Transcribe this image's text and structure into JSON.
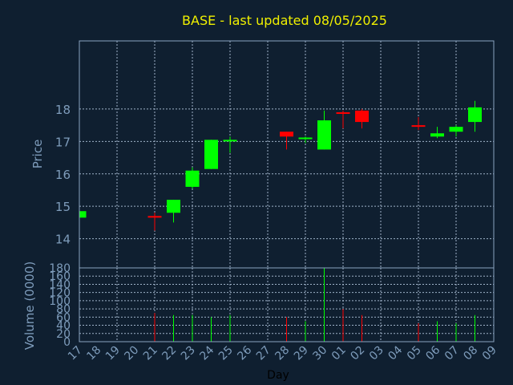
{
  "chart_data": {
    "type": "candlestick",
    "title": "BASE - last updated 08/05/2025",
    "xlabel": "Day",
    "price_ylabel": "Price",
    "volume_ylabel": "Volume (0000)",
    "x_tick_labels": [
      "17",
      "18",
      "19",
      "20",
      "21",
      "22",
      "23",
      "24",
      "25",
      "26",
      "27",
      "28",
      "29",
      "30",
      "01",
      "02",
      "03",
      "04",
      "05",
      "06",
      "07",
      "08",
      "09"
    ],
    "price_yticks": [
      14,
      15,
      16,
      17,
      18
    ],
    "price_ylim": [
      13.1,
      20.1
    ],
    "volume_yticks": [
      0,
      20,
      40,
      60,
      80,
      100,
      120,
      140,
      160,
      180
    ],
    "volume_ylim": [
      0,
      180
    ],
    "grid": true,
    "colors": {
      "up": "#00ff00",
      "down": "#ff0000",
      "title": "#f0f000",
      "axis_text": "#7e9cbb",
      "background": "#0f1f30"
    },
    "candles": [
      {
        "day": "17",
        "open": 14.65,
        "close": 14.85,
        "high": 14.85,
        "low": 14.65,
        "volume": 0
      },
      {
        "day": "21",
        "open": 14.7,
        "close": 14.65,
        "high": 14.8,
        "low": 14.25,
        "volume": 70
      },
      {
        "day": "22",
        "open": 14.8,
        "close": 15.2,
        "high": 15.2,
        "low": 14.5,
        "volume": 65
      },
      {
        "day": "23",
        "open": 15.6,
        "close": 16.1,
        "high": 16.2,
        "low": 15.55,
        "volume": 65
      },
      {
        "day": "24",
        "open": 16.15,
        "close": 17.05,
        "high": 17.05,
        "low": 16.15,
        "volume": 60
      },
      {
        "day": "25",
        "open": 17.0,
        "close": 17.05,
        "high": 17.15,
        "low": 16.65,
        "volume": 65
      },
      {
        "day": "28",
        "open": 17.3,
        "close": 17.15,
        "high": 17.3,
        "low": 16.75,
        "volume": 60
      },
      {
        "day": "29",
        "open": 17.08,
        "close": 17.12,
        "high": 17.15,
        "low": 16.95,
        "volume": 50
      },
      {
        "day": "30",
        "open": 16.75,
        "close": 17.65,
        "high": 17.95,
        "low": 16.75,
        "volume": 180
      },
      {
        "day": "01",
        "open": 17.9,
        "close": 17.85,
        "high": 17.95,
        "low": 17.4,
        "volume": 80
      },
      {
        "day": "02",
        "open": 17.95,
        "close": 17.6,
        "high": 18.0,
        "low": 17.4,
        "volume": 65
      },
      {
        "day": "05",
        "open": 17.5,
        "close": 17.48,
        "high": 17.75,
        "low": 17.35,
        "volume": 45
      },
      {
        "day": "06",
        "open": 17.15,
        "close": 17.25,
        "high": 17.45,
        "low": 17.1,
        "volume": 50
      },
      {
        "day": "07",
        "open": 17.3,
        "close": 17.45,
        "high": 17.5,
        "low": 17.15,
        "volume": 45
      },
      {
        "day": "08",
        "open": 17.6,
        "close": 18.05,
        "high": 18.25,
        "low": 17.3,
        "volume": 65
      }
    ]
  }
}
